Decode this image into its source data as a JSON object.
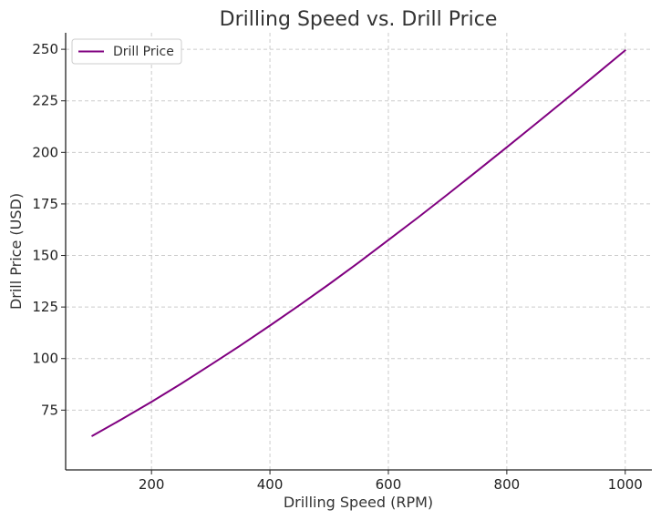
{
  "chart_data": {
    "type": "line",
    "title": "Drilling Speed vs. Drill Price",
    "xlabel": "Drilling Speed (RPM)",
    "ylabel": "Drill Price (USD)",
    "xlim": [
      55,
      1045
    ],
    "ylim": [
      46,
      258
    ],
    "xticks": [
      200,
      400,
      600,
      800,
      1000
    ],
    "yticks": [
      75,
      100,
      125,
      150,
      175,
      200,
      225,
      250
    ],
    "grid": true,
    "legend": "top-left",
    "series": [
      {
        "name": "Drill Price",
        "color": "#800080",
        "x": [
          100,
          150,
          200,
          250,
          300,
          350,
          400,
          450,
          500,
          550,
          600,
          650,
          700,
          750,
          800,
          850,
          900,
          950,
          1000
        ],
        "y": [
          62.5,
          70.6,
          79.0,
          87.8,
          97.0,
          106.3,
          116.0,
          125.9,
          136.1,
          146.6,
          157.5,
          168.4,
          179.6,
          191.0,
          202.5,
          214.1,
          225.8,
          237.6,
          249.5
        ]
      }
    ]
  }
}
